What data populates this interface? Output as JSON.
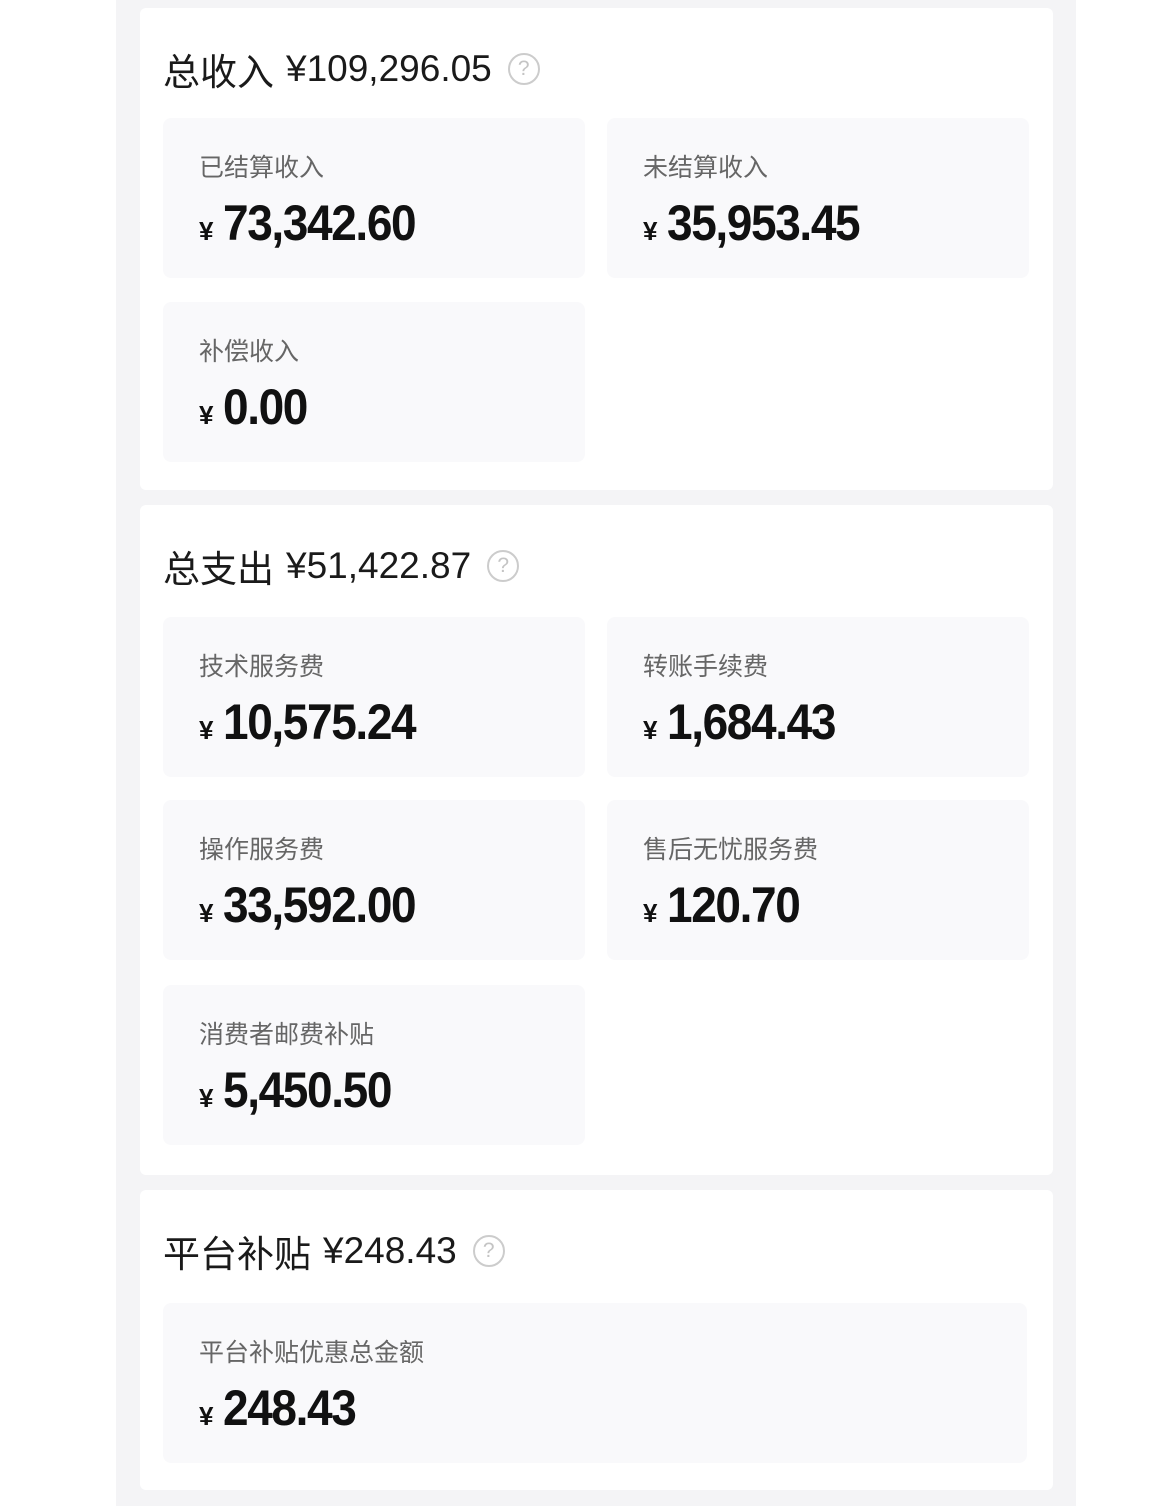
{
  "sections": [
    {
      "title": "总收入",
      "amount": "¥109,296.05",
      "help_icon": "question-circle-icon",
      "items": [
        {
          "label": "已结算收入",
          "currency": "¥",
          "value": "73,342.60"
        },
        {
          "label": "未结算收入",
          "currency": "¥",
          "value": "35,953.45"
        },
        {
          "label": "补偿收入",
          "currency": "¥",
          "value": "0.00"
        }
      ]
    },
    {
      "title": "总支出",
      "amount": "¥51,422.87",
      "help_icon": "question-circle-icon",
      "items": [
        {
          "label": "技术服务费",
          "currency": "¥",
          "value": "10,575.24"
        },
        {
          "label": "转账手续费",
          "currency": "¥",
          "value": "1,684.43"
        },
        {
          "label": "操作服务费",
          "currency": "¥",
          "value": "33,592.00"
        },
        {
          "label": "售后无忧服务费",
          "currency": "¥",
          "value": "120.70"
        },
        {
          "label": "消费者邮费补贴",
          "currency": "¥",
          "value": "5,450.50"
        }
      ]
    },
    {
      "title": "平台补贴",
      "amount": "¥248.43",
      "help_icon": "question-circle-icon",
      "items": [
        {
          "label": "平台补贴优惠总金额",
          "currency": "¥",
          "value": "248.43"
        }
      ]
    }
  ]
}
